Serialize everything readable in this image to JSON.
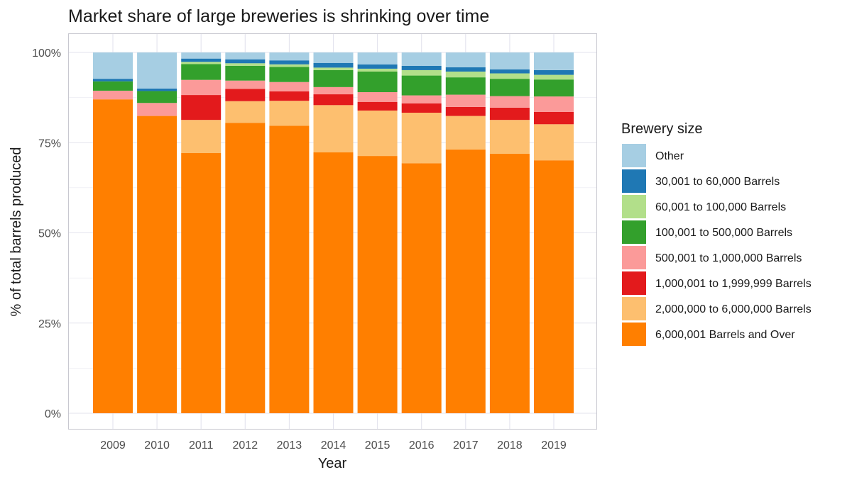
{
  "chart_data": {
    "type": "bar",
    "stacked": true,
    "title": "Market share of large breweries is shrinking over time",
    "xlabel": "Year",
    "ylabel": "% of total barrels produced",
    "ylim": [
      0,
      1
    ],
    "yticks": [
      0,
      0.25,
      0.5,
      0.75,
      1
    ],
    "ytick_labels": [
      "0%",
      "25%",
      "50%",
      "75%",
      "100%"
    ],
    "grid": true,
    "legend_title": "Brewery size",
    "legend_position": "right",
    "categories": [
      "2009",
      "2010",
      "2011",
      "2012",
      "2013",
      "2014",
      "2015",
      "2016",
      "2017",
      "2018",
      "2019"
    ],
    "series": [
      {
        "name": "6,000,001 Barrels and Over",
        "color": "#FF7F00",
        "values": [
          0.87,
          0.824,
          0.721,
          0.805,
          0.797,
          0.723,
          0.713,
          0.693,
          0.731,
          0.719,
          0.701
        ]
      },
      {
        "name": "2,000,000 to 6,000,000 Barrels",
        "color": "#FDBF6F",
        "values": [
          0.0,
          0.0,
          0.092,
          0.06,
          0.069,
          0.131,
          0.126,
          0.14,
          0.093,
          0.094,
          0.1
        ]
      },
      {
        "name": "1,000,001 to 1,999,999 Barrels",
        "color": "#E31A1C",
        "values": [
          0.0,
          0.0,
          0.069,
          0.034,
          0.026,
          0.03,
          0.024,
          0.026,
          0.025,
          0.034,
          0.034
        ]
      },
      {
        "name": "500,001 to 1,000,000 Barrels",
        "color": "#FB9A99",
        "values": [
          0.024,
          0.036,
          0.042,
          0.023,
          0.026,
          0.02,
          0.027,
          0.022,
          0.034,
          0.032,
          0.043
        ]
      },
      {
        "name": "100,001 to 500,000 Barrels",
        "color": "#33A02C",
        "values": [
          0.026,
          0.033,
          0.044,
          0.041,
          0.042,
          0.047,
          0.057,
          0.055,
          0.048,
          0.048,
          0.047
        ]
      },
      {
        "name": "60,001 to 100,000 Barrels",
        "color": "#B2DF8A",
        "values": [
          0.0,
          0.0,
          0.006,
          0.007,
          0.007,
          0.007,
          0.008,
          0.015,
          0.016,
          0.015,
          0.013
        ]
      },
      {
        "name": "30,001 to 60,000 Barrels",
        "color": "#1F78B4",
        "values": [
          0.007,
          0.007,
          0.009,
          0.011,
          0.011,
          0.013,
          0.012,
          0.012,
          0.012,
          0.011,
          0.013
        ]
      },
      {
        "name": "Other",
        "color": "#A6CEE3",
        "values": [
          0.073,
          0.1,
          0.017,
          0.019,
          0.022,
          0.029,
          0.033,
          0.037,
          0.041,
          0.047,
          0.049
        ]
      }
    ]
  },
  "colors": {
    "panel_border": "#c8c8d0",
    "grid": "#e3e3ee",
    "axis_text": "#4d4d4d",
    "text": "#1a1a1a"
  }
}
